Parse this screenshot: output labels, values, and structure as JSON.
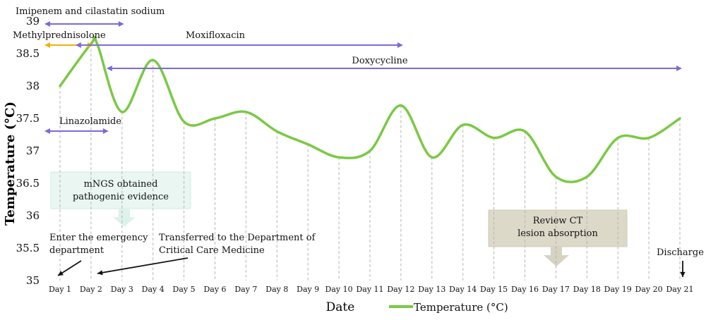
{
  "chart_data": {
    "type": "line",
    "title": "",
    "xlabel": "Date",
    "ylabel": "Temperature (°C)",
    "ylim": [
      35,
      39
    ],
    "yticks": [
      "39",
      "38.5",
      "38",
      "37.5",
      "37",
      "36.5",
      "36",
      "35.5",
      "35"
    ],
    "categories": [
      "Day 1",
      "Day 2",
      "Day 3",
      "Day 4",
      "Day 5",
      "Day 6",
      "Day 7",
      "Day 8",
      "Day 9",
      "Day 10",
      "Day 11",
      "Day 12",
      "Day 13",
      "Day 14",
      "Day 15",
      "Day 16",
      "Day 17",
      "Day 18",
      "Day 19",
      "Day 20",
      "Day 21"
    ],
    "x": [
      1,
      2,
      3,
      4,
      5,
      6,
      7,
      8,
      9,
      10,
      11,
      12,
      13,
      14,
      15,
      16,
      17,
      18,
      19,
      20,
      21
    ],
    "series": [
      {
        "name": "Temperature (°C)",
        "color": "#7ac943",
        "x": [
          1,
          2,
          2.2,
          3,
          4,
          5,
          6,
          7,
          8,
          9,
          10,
          11,
          12,
          13,
          14,
          15,
          16,
          17,
          18,
          19,
          20,
          21
        ],
        "values": [
          38.0,
          38.65,
          38.65,
          37.6,
          38.4,
          37.45,
          37.5,
          37.6,
          37.3,
          37.1,
          36.9,
          37.0,
          37.7,
          36.9,
          37.4,
          37.2,
          37.3,
          36.6,
          36.6,
          37.2,
          37.2,
          37.5
        ]
      }
    ],
    "grid": "vertical dashed drop lines",
    "legend": "bottom-center",
    "medications": [
      {
        "label": "Imipenem and cilastatin sodium",
        "from": 1,
        "to": 3,
        "color": "#7b6bd6"
      },
      {
        "label": "Methylprednisolone",
        "from": 1,
        "to": 2,
        "color": "#f0b400"
      },
      {
        "label": "Moxifloxacin",
        "from": 2,
        "to": 12,
        "color": "#7b6bd6"
      },
      {
        "label": "Doxycycline",
        "from": 3,
        "to": 21,
        "color": "#7b6bd6"
      },
      {
        "label": "Linazolamide",
        "from": 1,
        "to": 2.5,
        "color": "#7b6bd6"
      }
    ],
    "annotations": {
      "mngs": [
        "mNGS obtained",
        "pathogenic evidence"
      ],
      "review_ct": [
        "Review CT",
        "lesion absorption"
      ],
      "emergency": [
        "Enter the emergency",
        "department"
      ],
      "transferred": [
        "Transferred to the Department of",
        "Critical Care Medicine"
      ],
      "discharge": "Discharge"
    }
  }
}
